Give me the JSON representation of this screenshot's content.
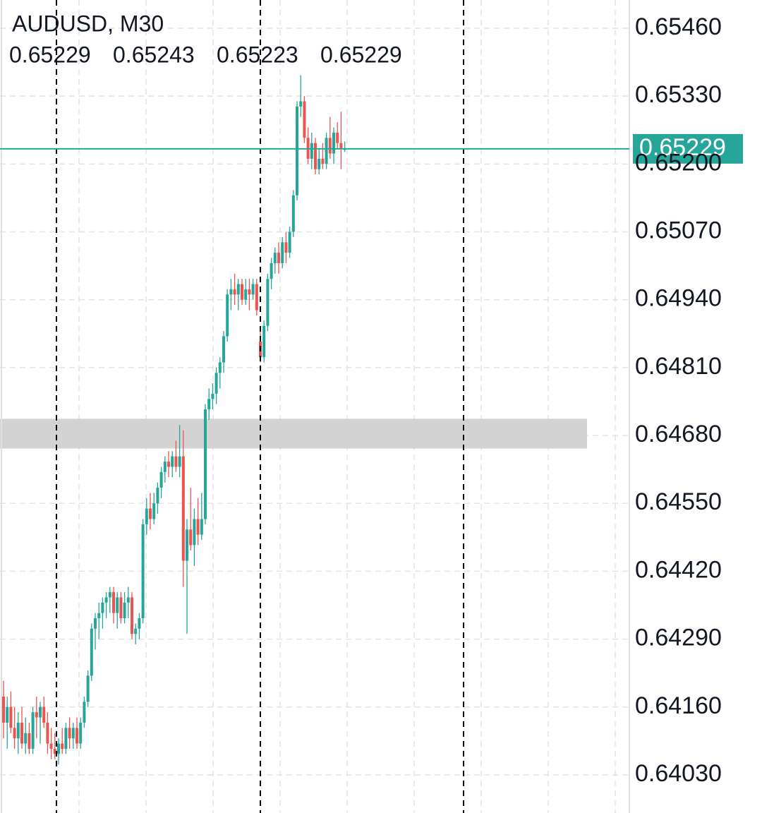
{
  "chart_data": {
    "type": "candlestick",
    "title": "AUDUSD, M30",
    "ohlc_header": [
      0.65229,
      0.65243,
      0.65223,
      0.65229
    ],
    "open": [
      0.6418,
      0.6413,
      0.6416,
      0.6412,
      0.641,
      0.6413,
      0.6409,
      0.6411,
      0.6408,
      0.6415,
      0.6414,
      0.6416,
      0.6413,
      0.6409,
      0.6408,
      0.6407,
      0.6409,
      0.6408,
      0.6412,
      0.641,
      0.6412,
      0.6409,
      0.6413,
      0.6417,
      0.6422,
      0.6431,
      0.6433,
      0.6434,
      0.6436,
      0.6437,
      0.6438,
      0.6434,
      0.6437,
      0.6433,
      0.6436,
      0.6437,
      0.643,
      0.6431,
      0.6433,
      0.6451,
      0.6454,
      0.6452,
      0.6455,
      0.6458,
      0.6461,
      0.6463,
      0.6462,
      0.6464,
      0.6462,
      0.6464,
      0.6444,
      0.645,
      0.6447,
      0.6452,
      0.6449,
      0.6452,
      0.6473,
      0.6475,
      0.6476,
      0.648,
      0.6482,
      0.6487,
      0.6495,
      0.6496,
      0.6495,
      0.6497,
      0.6494,
      0.6496,
      0.6495,
      0.6497,
      0.6486,
      0.6483,
      0.6489,
      0.6498,
      0.6501,
      0.6503,
      0.6501,
      0.6505,
      0.6503,
      0.6507,
      0.6514,
      0.6531,
      0.6532,
      0.6525,
      0.6521,
      0.6524,
      0.6519,
      0.6521,
      0.652,
      0.6525,
      0.6522,
      0.6526,
      0.6524,
      0.65229
    ],
    "high": [
      0.6421,
      0.6418,
      0.6419,
      0.6416,
      0.6415,
      0.6416,
      0.6414,
      0.6413,
      0.6416,
      0.6418,
      0.6417,
      0.6418,
      0.6415,
      0.6412,
      0.6411,
      0.641,
      0.6412,
      0.6413,
      0.6414,
      0.6413,
      0.6414,
      0.6414,
      0.6418,
      0.6423,
      0.6432,
      0.6434,
      0.6436,
      0.6437,
      0.6438,
      0.6439,
      0.6439,
      0.6438,
      0.6438,
      0.6438,
      0.6439,
      0.6438,
      0.6432,
      0.6434,
      0.6452,
      0.6456,
      0.6457,
      0.6457,
      0.6459,
      0.6462,
      0.6464,
      0.6465,
      0.6465,
      0.6467,
      0.647,
      0.6469,
      0.6452,
      0.6458,
      0.6454,
      0.6456,
      0.6457,
      0.6474,
      0.6477,
      0.6478,
      0.6481,
      0.6483,
      0.6488,
      0.6496,
      0.6498,
      0.6499,
      0.6498,
      0.6498,
      0.6498,
      0.6498,
      0.6498,
      0.6498,
      0.6488,
      0.649,
      0.6499,
      0.6502,
      0.6504,
      0.6505,
      0.6506,
      0.6507,
      0.6508,
      0.6515,
      0.6532,
      0.6537,
      0.6533,
      0.6527,
      0.6526,
      0.6525,
      0.6523,
      0.6524,
      0.6526,
      0.6529,
      0.6527,
      0.6528,
      0.653,
      0.65243
    ],
    "low": [
      0.641,
      0.6408,
      0.6411,
      0.6408,
      0.6407,
      0.6408,
      0.6407,
      0.6407,
      0.6407,
      0.641,
      0.6409,
      0.6412,
      0.6407,
      0.6406,
      0.6406,
      0.6405,
      0.6407,
      0.6407,
      0.6408,
      0.6408,
      0.6408,
      0.6408,
      0.6412,
      0.6416,
      0.6421,
      0.6427,
      0.6429,
      0.6431,
      0.6433,
      0.6434,
      0.6432,
      0.6431,
      0.6432,
      0.6432,
      0.6433,
      0.6429,
      0.6428,
      0.6429,
      0.6432,
      0.6449,
      0.645,
      0.6451,
      0.6453,
      0.6456,
      0.6459,
      0.646,
      0.646,
      0.6461,
      0.646,
      0.6439,
      0.643,
      0.6446,
      0.6443,
      0.6447,
      0.6448,
      0.6451,
      0.6471,
      0.6473,
      0.6474,
      0.6477,
      0.648,
      0.6486,
      0.6492,
      0.6493,
      0.6492,
      0.6493,
      0.6493,
      0.6492,
      0.6494,
      0.6491,
      0.6482,
      0.6482,
      0.6488,
      0.6496,
      0.6499,
      0.6499,
      0.65,
      0.6501,
      0.6502,
      0.6506,
      0.6513,
      0.6529,
      0.6524,
      0.652,
      0.6519,
      0.6518,
      0.6518,
      0.6519,
      0.6519,
      0.6521,
      0.652,
      0.6523,
      0.6519,
      0.65223
    ],
    "close": [
      0.6413,
      0.6416,
      0.6412,
      0.641,
      0.6413,
      0.6409,
      0.6411,
      0.6408,
      0.6415,
      0.6414,
      0.6416,
      0.6413,
      0.6409,
      0.6408,
      0.6407,
      0.6409,
      0.6408,
      0.6412,
      0.641,
      0.6412,
      0.6409,
      0.6413,
      0.6417,
      0.6422,
      0.6431,
      0.6433,
      0.6434,
      0.6436,
      0.6437,
      0.6438,
      0.6434,
      0.6437,
      0.6433,
      0.6436,
      0.6437,
      0.643,
      0.6431,
      0.6433,
      0.6451,
      0.6454,
      0.6452,
      0.6455,
      0.6458,
      0.6461,
      0.6463,
      0.6462,
      0.6464,
      0.6462,
      0.6464,
      0.6444,
      0.645,
      0.6447,
      0.6452,
      0.6449,
      0.6452,
      0.6473,
      0.6475,
      0.6476,
      0.648,
      0.6482,
      0.6487,
      0.6495,
      0.6496,
      0.6495,
      0.6497,
      0.6494,
      0.6496,
      0.6495,
      0.6497,
      0.6492,
      0.6483,
      0.6489,
      0.6498,
      0.6501,
      0.6503,
      0.6501,
      0.6505,
      0.6503,
      0.6507,
      0.6514,
      0.6531,
      0.6532,
      0.6525,
      0.6521,
      0.6524,
      0.6519,
      0.6521,
      0.652,
      0.6525,
      0.6522,
      0.6526,
      0.6524,
      0.6523,
      0.65229
    ],
    "up_color": "#26a69a",
    "down_color": "#ef5350",
    "ylim": [
      0.63957,
      0.65514
    ],
    "yticks": [
      {
        "value": 0.6546,
        "label": "0.65460"
      },
      {
        "value": 0.6533,
        "label": "0.65330"
      },
      {
        "value": 0.652,
        "label": "0.65200"
      },
      {
        "value": 0.6507,
        "label": "0.65070"
      },
      {
        "value": 0.6494,
        "label": "0.64940"
      },
      {
        "value": 0.6481,
        "label": "0.64810"
      },
      {
        "value": 0.6468,
        "label": "0.64680"
      },
      {
        "value": 0.6455,
        "label": "0.64550"
      },
      {
        "value": 0.6442,
        "label": "0.64420"
      },
      {
        "value": 0.6429,
        "label": "0.64290"
      },
      {
        "value": 0.6416,
        "label": "0.64160"
      },
      {
        "value": 0.6403,
        "label": "0.64030"
      }
    ],
    "grid": true,
    "last_price": 0.65229,
    "last_price_color": "#26a69a",
    "zone": {
      "from": 0.64655,
      "to": 0.64712,
      "color": "#d3d3d3"
    }
  }
}
